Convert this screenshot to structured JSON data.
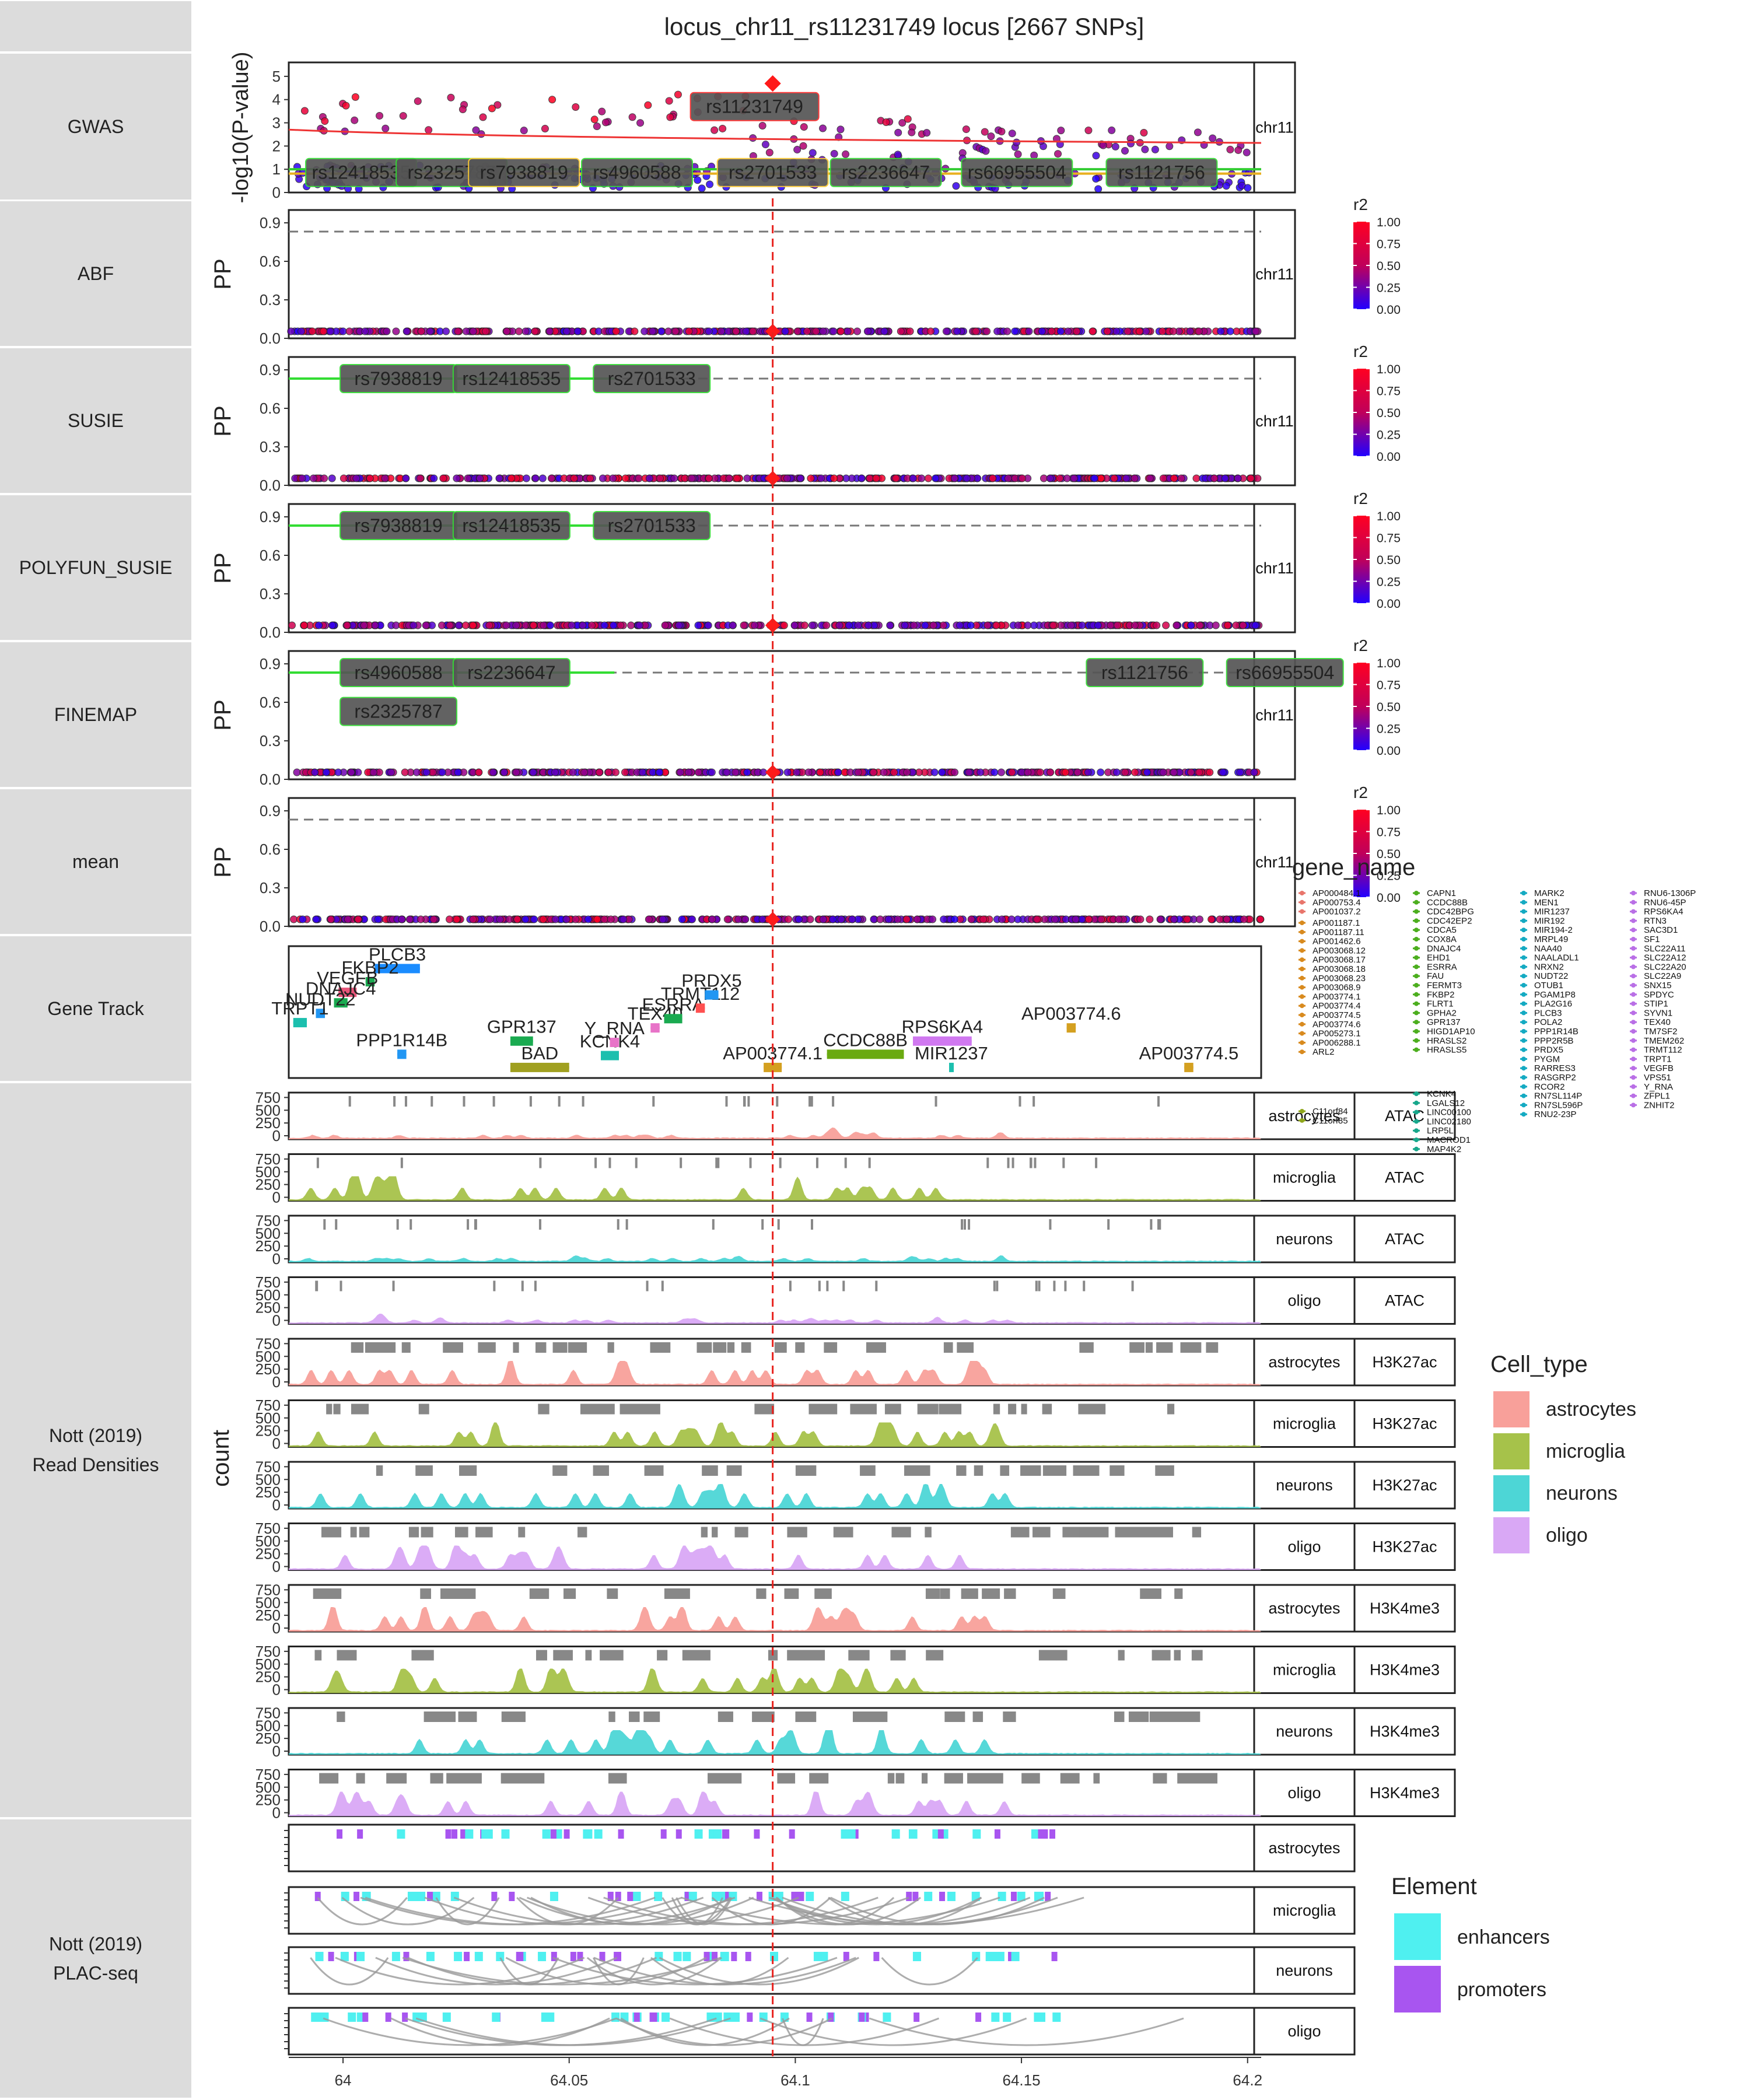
{
  "title": "locus_chr11_rs11231749 locus [2667 SNPs]",
  "x_axis": {
    "range": [
      63.988,
      64.203
    ],
    "ticks": [
      64,
      64.05,
      64.1,
      64.15,
      64.2
    ],
    "tick_labels": [
      "64",
      "64.05",
      "64.1",
      "64.15",
      "64.2"
    ]
  },
  "lead_snp_pos": 64.095,
  "row_labels": {
    "gwas": "GWAS",
    "abf": "ABF",
    "susie": "SUSIE",
    "polyfun": "POLYFUN_SUSIE",
    "finemap": "FINEMAP",
    "mean": "mean",
    "gene_track": "Gene Track",
    "nott_reads_line1": "Nott (2019)",
    "nott_reads_line2": "Read Densities",
    "nott_plac_line1": "Nott (2019)",
    "nott_plac_line2": "PLAC-seq"
  },
  "ylabels": {
    "gwas": "-log10(P-value)",
    "pp": "PP",
    "count": "count"
  },
  "chrom_strip": "chr11",
  "r2_legend": {
    "title": "r2",
    "labels": [
      "1.00",
      "0.75",
      "0.50",
      "0.25",
      "0.00"
    ],
    "color_high": "#ff0022",
    "color_low": "#2200ff"
  },
  "gwas_ticks": [
    "0",
    "1",
    "2",
    "3",
    "4",
    "5"
  ],
  "pp_ticks": [
    "0.0",
    "0.3",
    "0.6",
    "0.9"
  ],
  "count_ticks": [
    "0",
    "250",
    "500",
    "750"
  ],
  "gwas_labels": {
    "lead": "rs11231749",
    "consensus": [
      "rs2701533"
    ],
    "others": [
      "rs12418535",
      "rs2325787",
      "rs7938819",
      "rs4960588",
      "rs2236647",
      "rs66955504",
      "rs1121756"
    ]
  },
  "susie_labels": [
    "rs7938819",
    "rs12418535",
    "rs2701533"
  ],
  "polyfun_labels": [
    "rs7938819",
    "rs12418535",
    "rs2701533"
  ],
  "finemap_labels": [
    "rs4960588",
    "rs2236647",
    "rs2325787",
    "rs1121756",
    "rs66955504"
  ],
  "genes": [
    {
      "name": "PLCB3",
      "start": 64.007,
      "end": 64.017,
      "y": 0.17,
      "color": "#1a8cff"
    },
    {
      "name": "FKBP2",
      "start": 64.005,
      "end": 64.007,
      "y": 0.27,
      "color": "#1aaa50"
    },
    {
      "name": "VEGFB",
      "start": 63.999,
      "end": 64.003,
      "y": 0.35,
      "color": "#e8567a"
    },
    {
      "name": "DNAJC4",
      "start": 63.998,
      "end": 64.001,
      "y": 0.43,
      "color": "#1aaa50"
    },
    {
      "name": "NUDT22",
      "start": 63.994,
      "end": 63.996,
      "y": 0.51,
      "color": "#2196f3"
    },
    {
      "name": "TRPT1",
      "start": 63.989,
      "end": 63.992,
      "y": 0.58,
      "color": "#1cbfae"
    },
    {
      "name": "PPP1R14B",
      "start": 64.012,
      "end": 64.014,
      "y": 0.82,
      "color": "#2196f3"
    },
    {
      "name": "GPR137",
      "start": 64.037,
      "end": 64.042,
      "y": 0.72,
      "color": "#1aaa50"
    },
    {
      "name": "BAD",
      "start": 64.037,
      "end": 64.05,
      "y": 0.92,
      "color": "#a0a020"
    },
    {
      "name": "KCNK4",
      "start": 64.057,
      "end": 64.061,
      "y": 0.83,
      "color": "#1cbfae"
    },
    {
      "name": "Y_RNA",
      "start": 64.059,
      "end": 64.061,
      "y": 0.73,
      "color": "#e873c8"
    },
    {
      "name": "TEX40",
      "start": 64.068,
      "end": 64.07,
      "y": 0.62,
      "color": "#e873c8"
    },
    {
      "name": "ESRRA",
      "start": 64.071,
      "end": 64.075,
      "y": 0.55,
      "color": "#1aaa50"
    },
    {
      "name": "TRMT112",
      "start": 64.078,
      "end": 64.08,
      "y": 0.47,
      "color": "#ff5050"
    },
    {
      "name": "PRDX5",
      "start": 64.08,
      "end": 64.083,
      "y": 0.37,
      "color": "#2196f3"
    },
    {
      "name": "AP003774.1",
      "start": 64.093,
      "end": 64.097,
      "y": 0.92,
      "color": "#d4a020"
    },
    {
      "name": "CCDC88B",
      "start": 64.107,
      "end": 64.124,
      "y": 0.82,
      "color": "#6aaa10"
    },
    {
      "name": "RPS6KA4",
      "start": 64.126,
      "end": 64.139,
      "y": 0.72,
      "color": "#d078f0"
    },
    {
      "name": "MIR1237",
      "start": 64.134,
      "end": 64.135,
      "y": 0.92,
      "color": "#1cbfae"
    },
    {
      "name": "AP003774.6",
      "start": 64.16,
      "end": 64.162,
      "y": 0.62,
      "color": "#d4a020"
    },
    {
      "name": "AP003774.5",
      "start": 64.186,
      "end": 64.188,
      "y": 0.92,
      "color": "#d4a020"
    }
  ],
  "gene_legend": {
    "title": "gene_name",
    "columns": [
      {
        "color": "#e8756b",
        "items": [
          "AP000484.1",
          "AP000753.4",
          "AP001037.2"
        ]
      },
      {
        "color": "#d88a1e",
        "items": [
          "AP001187.1",
          "AP001187.11",
          "AP001462.6",
          "AP003068.12",
          "AP003068.17",
          "AP003068.18",
          "AP003068.23",
          "AP003068.9",
          "AP003774.1",
          "AP003774.4",
          "AP003774.5",
          "AP003774.6",
          "AP005273.1",
          "AP006288.1",
          "ARL2"
        ]
      },
      {
        "color": "#8fa61b",
        "items": [
          "C11orf84",
          "C11orf85"
        ]
      },
      {
        "color": "#4cae1e",
        "items": [
          "CAPN1",
          "CCDC88B",
          "CDC42BPG",
          "CDC42EP2",
          "CDCA5",
          "COX8A",
          "DNAJC4",
          "EHD1",
          "ESRRA",
          "FAU",
          "FERMT3",
          "FKBP2",
          "FLRT1",
          "GPHA2",
          "GPR137",
          "HIGD1AP10",
          "HRASLS2",
          "HRASLS5"
        ]
      },
      {
        "color": "#17a78b",
        "items": [
          "KCNK4",
          "LGALS12",
          "LINC00100",
          "LINC02180",
          "LRP5L",
          "MACROD1",
          "MAP4K2"
        ]
      },
      {
        "color": "#14aac2",
        "items": [
          "MARK2",
          "MEN1",
          "MIR1237",
          "MIR192",
          "MIR194-2",
          "MRPL49",
          "NAA40",
          "NAALADL1",
          "NRXN2",
          "NUDT22",
          "OTUB1",
          "PGAM1P8",
          "PLA2G16",
          "PLCB3",
          "POLA2",
          "PPP1R14B",
          "PPP2R5B",
          "PRDX5",
          "PYGM",
          "RARRES3",
          "RASGRP2",
          "RCOR2",
          "RN7SL114P",
          "RN7SL596P",
          "RNU2-23P"
        ]
      },
      {
        "color": "#b96fe6",
        "items": [
          "RNU6-1306P",
          "RNU6-45P",
          "RPS6KA4",
          "RTN3",
          "SAC3D1",
          "SF1",
          "SLC22A11",
          "SLC22A12",
          "SLC22A20",
          "SLC22A9",
          "SNX15",
          "SPDYC",
          "STIP1",
          "SYVN1",
          "TEX40",
          "TM7SF2",
          "TMEM262",
          "TRMT112",
          "TRPT1",
          "VEGFB",
          "VPS51",
          "Y_RNA",
          "ZFPL1",
          "ZNHIT2"
        ]
      }
    ]
  },
  "read_tracks": [
    {
      "cell": "astrocytes",
      "assay": "ATAC"
    },
    {
      "cell": "microglia",
      "assay": "ATAC"
    },
    {
      "cell": "neurons",
      "assay": "ATAC"
    },
    {
      "cell": "oligo",
      "assay": "ATAC"
    },
    {
      "cell": "astrocytes",
      "assay": "H3K27ac"
    },
    {
      "cell": "microglia",
      "assay": "H3K27ac"
    },
    {
      "cell": "neurons",
      "assay": "H3K27ac"
    },
    {
      "cell": "oligo",
      "assay": "H3K27ac"
    },
    {
      "cell": "astrocytes",
      "assay": "H3K4me3"
    },
    {
      "cell": "microglia",
      "assay": "H3K4me3"
    },
    {
      "cell": "neurons",
      "assay": "H3K4me3"
    },
    {
      "cell": "oligo",
      "assay": "H3K4me3"
    }
  ],
  "plac_tracks": [
    "astrocytes",
    "microglia",
    "neurons",
    "oligo"
  ],
  "cell_legend": {
    "title": "Cell_type",
    "items": [
      {
        "label": "astrocytes",
        "color": "#f8a09a"
      },
      {
        "label": "microglia",
        "color": "#a6c24a"
      },
      {
        "label": "neurons",
        "color": "#4dd6d6"
      },
      {
        "label": "oligo",
        "color": "#d9a8f5"
      }
    ]
  },
  "element_legend": {
    "title": "Element",
    "items": [
      {
        "label": "enhancers",
        "color": "#4ff0f0"
      },
      {
        "label": "promoters",
        "color": "#a855f0"
      }
    ]
  }
}
